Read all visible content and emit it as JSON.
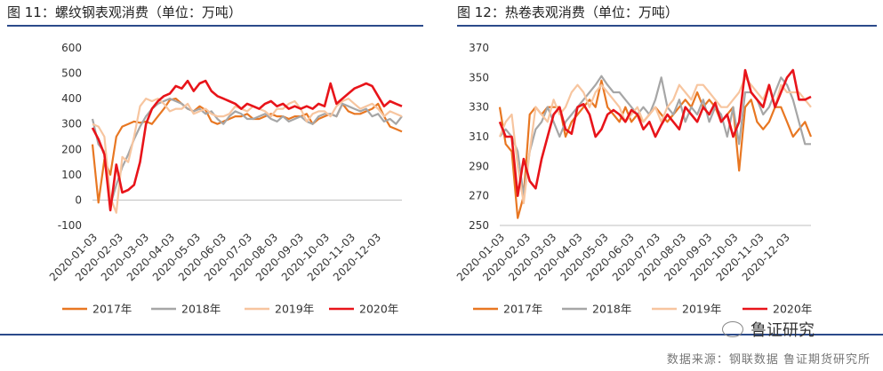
{
  "header": {
    "left_title": "图 11：螺纹钢表观消费（单位：万吨）",
    "right_title": "图 12：热卷表观消费（单位：万吨）"
  },
  "footer": {
    "source": "数据来源：钢联数据 鲁证期货研究所",
    "watermark": "鲁证研究"
  },
  "chart_data": [
    {
      "type": "line",
      "title": "图 11：螺纹钢表观消费（单位：万吨）",
      "ylim": [
        -100,
        600
      ],
      "yticks": [
        -100,
        0,
        100,
        200,
        300,
        400,
        500,
        600
      ],
      "x_ticks": [
        "2020-01-03",
        "2020-02-03",
        "2020-03-03",
        "2020-04-03",
        "2020-05-03",
        "2020-06-03",
        "2020-07-03",
        "2020-08-03",
        "2020-09-03",
        "2020-10-03",
        "2020-11-03",
        "2020-12-03"
      ],
      "legend_position": "bottom",
      "series": [
        {
          "name": "2017年",
          "color": "#e87722",
          "values": [
            220,
            -10,
            160,
            100,
            250,
            290,
            300,
            310,
            305,
            310,
            300,
            330,
            360,
            395,
            400,
            380,
            360,
            350,
            370,
            355,
            310,
            300,
            310,
            320,
            330,
            330,
            340,
            320,
            320,
            330,
            340,
            330,
            330,
            320,
            330,
            330,
            340,
            300,
            320,
            330,
            340,
            330,
            380,
            350,
            340,
            340,
            350,
            360,
            380,
            330,
            290,
            280,
            270
          ]
        },
        {
          "name": "2018年",
          "color": "#a6a6a6",
          "values": [
            320,
            220,
            190,
            -20,
            60,
            130,
            180,
            240,
            290,
            330,
            360,
            380,
            390,
            400,
            390,
            380,
            360,
            350,
            360,
            340,
            350,
            320,
            300,
            330,
            350,
            340,
            320,
            320,
            330,
            340,
            320,
            310,
            330,
            310,
            320,
            330,
            310,
            300,
            330,
            340,
            340,
            330,
            380,
            370,
            360,
            350,
            360,
            330,
            340,
            310,
            320,
            300,
            330
          ]
        },
        {
          "name": "2019年",
          "color": "#f7c59f",
          "values": [
            300,
            290,
            250,
            10,
            -50,
            170,
            150,
            250,
            370,
            400,
            390,
            400,
            380,
            350,
            360,
            360,
            380,
            340,
            350,
            360,
            340,
            330,
            330,
            340,
            370,
            360,
            350,
            370,
            360,
            350,
            330,
            360,
            360,
            380,
            390,
            360,
            310,
            340,
            350,
            350,
            330,
            370,
            390,
            400,
            380,
            360,
            370,
            380,
            360,
            330,
            350,
            340,
            330
          ]
        },
        {
          "name": "2020年",
          "color": "#e8141a",
          "values": [
            285,
            240,
            180,
            -40,
            140,
            30,
            40,
            60,
            150,
            300,
            360,
            390,
            410,
            420,
            450,
            440,
            470,
            430,
            460,
            470,
            430,
            410,
            400,
            390,
            380,
            360,
            380,
            370,
            360,
            380,
            390,
            370,
            380,
            360,
            370,
            360,
            370,
            360,
            380,
            370,
            460,
            380,
            400,
            420,
            440,
            450,
            460,
            450,
            410,
            370,
            390,
            380,
            370
          ]
        }
      ]
    },
    {
      "type": "line",
      "title": "图 12：热卷表观消费（单位：万吨）",
      "ylim": [
        250,
        370
      ],
      "yticks": [
        250,
        270,
        290,
        310,
        330,
        350,
        370
      ],
      "x_ticks": [
        "2020-01-03",
        "2020-02-03",
        "2020-03-03",
        "2020-04-03",
        "2020-05-03",
        "2020-06-03",
        "2020-07-03",
        "2020-08-03",
        "2020-09-03",
        "2020-10-03",
        "2020-11-03",
        "2020-12-03"
      ],
      "legend_position": "bottom",
      "series": [
        {
          "name": "2017年",
          "color": "#e87722",
          "values": [
            330,
            305,
            300,
            255,
            270,
            325,
            330,
            325,
            330,
            330,
            330,
            310,
            320,
            325,
            330,
            335,
            330,
            348,
            330,
            325,
            320,
            330,
            320,
            325,
            320,
            325,
            330,
            325,
            320,
            325,
            330,
            335,
            330,
            340,
            330,
            335,
            330,
            320,
            325,
            330,
            287,
            330,
            335,
            320,
            315,
            320,
            330,
            330,
            320,
            310,
            315,
            320,
            310
          ]
        },
        {
          "name": "2018年",
          "color": "#a6a6a6",
          "values": [
            310,
            315,
            310,
            300,
            270,
            300,
            315,
            320,
            330,
            320,
            310,
            320,
            325,
            330,
            335,
            340,
            345,
            351,
            345,
            340,
            340,
            335,
            330,
            325,
            330,
            325,
            335,
            350,
            330,
            325,
            335,
            320,
            330,
            325,
            335,
            320,
            330,
            325,
            310,
            330,
            305,
            340,
            340,
            335,
            325,
            330,
            340,
            350,
            345,
            335,
            320,
            305,
            305
          ]
        },
        {
          "name": "2019年",
          "color": "#f7c59f",
          "values": [
            310,
            320,
            325,
            290,
            265,
            300,
            330,
            325,
            320,
            335,
            325,
            330,
            340,
            345,
            340,
            330,
            340,
            345,
            340,
            335,
            330,
            320,
            325,
            330,
            320,
            325,
            330,
            320,
            330,
            335,
            345,
            340,
            335,
            345,
            345,
            340,
            335,
            330,
            330,
            335,
            340,
            350,
            345,
            340,
            335,
            345,
            330,
            345,
            340,
            340,
            340,
            335,
            330
          ]
        },
        {
          "name": "2020年",
          "color": "#e8141a",
          "values": [
            320,
            310,
            310,
            270,
            295,
            280,
            275,
            295,
            310,
            325,
            330,
            315,
            312,
            330,
            332,
            325,
            310,
            315,
            325,
            328,
            325,
            320,
            328,
            325,
            315,
            320,
            310,
            318,
            325,
            320,
            315,
            330,
            325,
            320,
            330,
            325,
            333,
            320,
            325,
            310,
            320,
            355,
            340,
            335,
            330,
            345,
            330,
            340,
            350,
            355,
            335,
            335,
            337
          ]
        }
      ]
    }
  ]
}
